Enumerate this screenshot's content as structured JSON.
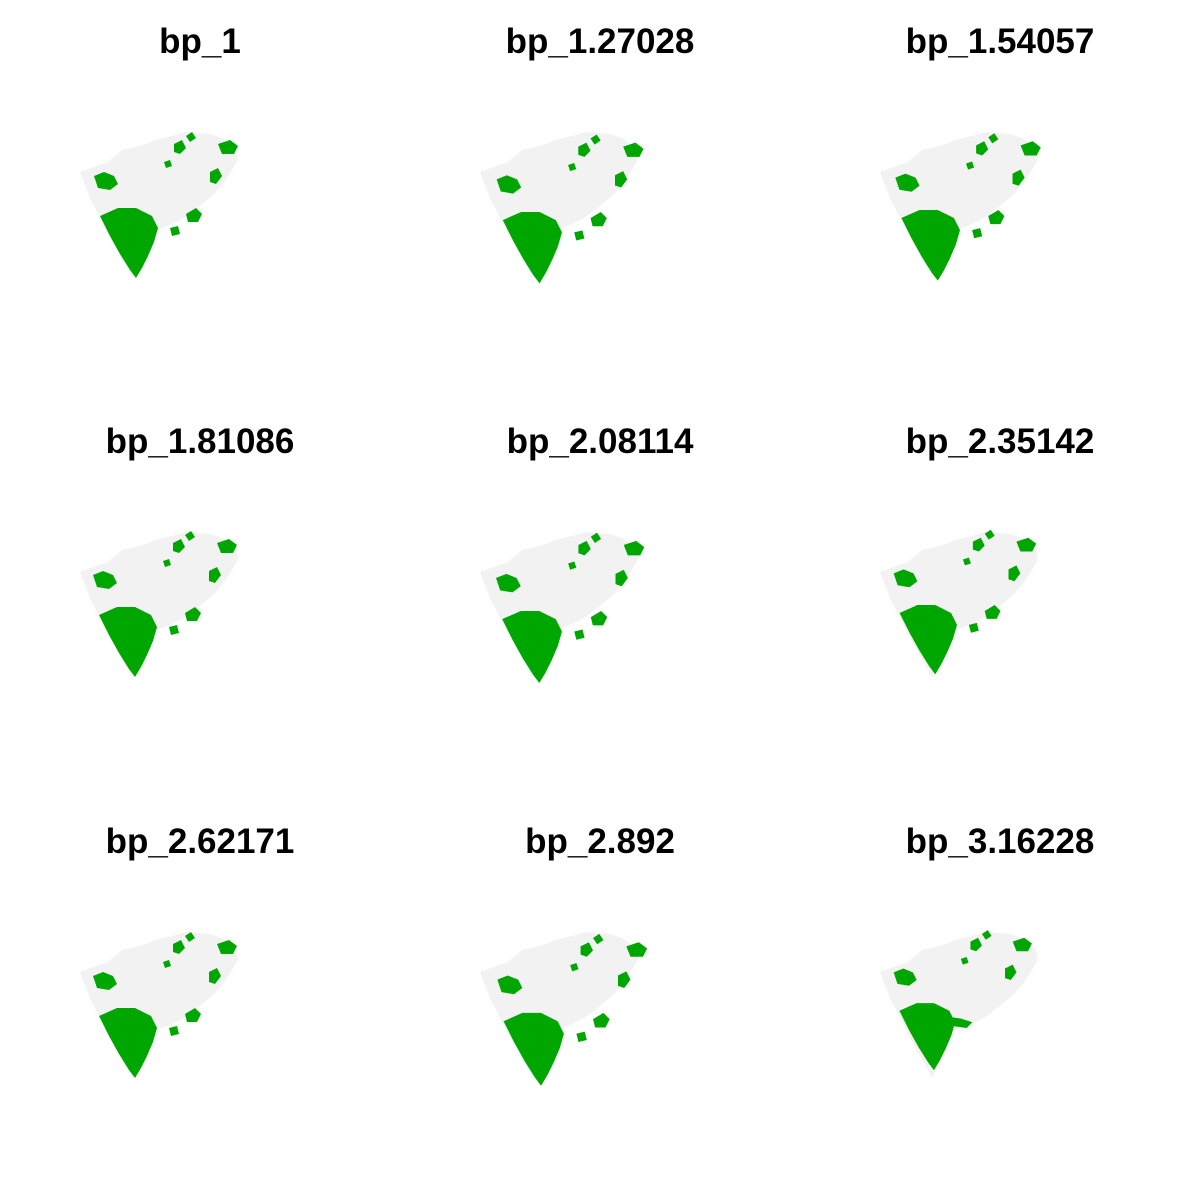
{
  "colors": {
    "background": "#ffffff",
    "land": "#f2f2f2",
    "habitat": "#00a600",
    "title": "#000000"
  },
  "panels": [
    {
      "title": "bp_1",
      "variant": 0
    },
    {
      "title": "bp_1.27028",
      "variant": 1
    },
    {
      "title": "bp_1.54057",
      "variant": 2
    },
    {
      "title": "bp_1.81086",
      "variant": 3
    },
    {
      "title": "bp_2.08114",
      "variant": 4
    },
    {
      "title": "bp_2.35142",
      "variant": 5
    },
    {
      "title": "bp_2.62171",
      "variant": 6
    },
    {
      "title": "bp_2.892",
      "variant": 7
    },
    {
      "title": "bp_3.16228",
      "variant": 8
    }
  ]
}
